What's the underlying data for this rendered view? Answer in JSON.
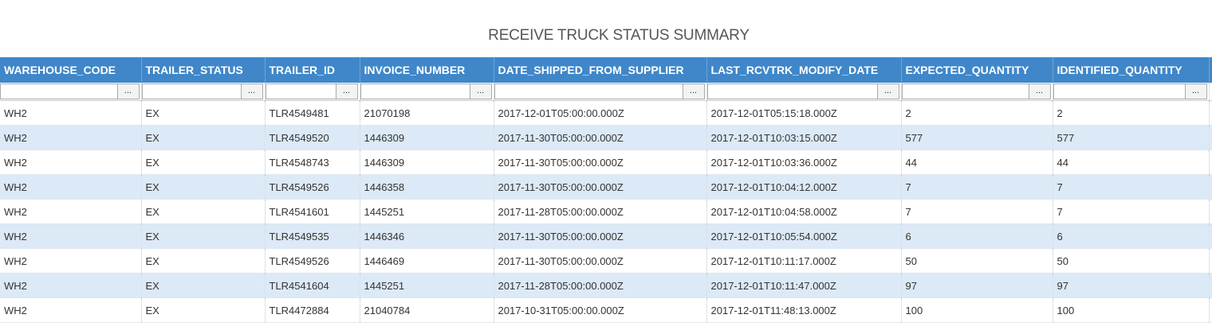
{
  "header": {
    "title": "RECEIVE TRUCK STATUS SUMMARY"
  },
  "table": {
    "filter_button": "...",
    "columns": [
      "WAREHOUSE_CODE",
      "TRAILER_STATUS",
      "TRAILER_ID",
      "INVOICE_NUMBER",
      "DATE_SHIPPED_FROM_SUPPLIER",
      "LAST_RCVTRK_MODIFY_DATE",
      "EXPECTED_QUANTITY",
      "IDENTIFIED_QUANTITY"
    ],
    "rows": [
      [
        "WH2",
        "EX",
        "TLR4549481",
        "21070198",
        "2017-12-01T05:00:00.000Z",
        "2017-12-01T05:15:18.000Z",
        "2",
        "2"
      ],
      [
        "WH2",
        "EX",
        "TLR4549520",
        "1446309",
        "2017-11-30T05:00:00.000Z",
        "2017-12-01T10:03:15.000Z",
        "577",
        "577"
      ],
      [
        "WH2",
        "EX",
        "TLR4548743",
        "1446309",
        "2017-11-30T05:00:00.000Z",
        "2017-12-01T10:03:36.000Z",
        "44",
        "44"
      ],
      [
        "WH2",
        "EX",
        "TLR4549526",
        "1446358",
        "2017-11-30T05:00:00.000Z",
        "2017-12-01T10:04:12.000Z",
        "7",
        "7"
      ],
      [
        "WH2",
        "EX",
        "TLR4541601",
        "1445251",
        "2017-11-28T05:00:00.000Z",
        "2017-12-01T10:04:58.000Z",
        "7",
        "7"
      ],
      [
        "WH2",
        "EX",
        "TLR4549535",
        "1446346",
        "2017-11-30T05:00:00.000Z",
        "2017-12-01T10:05:54.000Z",
        "6",
        "6"
      ],
      [
        "WH2",
        "EX",
        "TLR4549526",
        "1446469",
        "2017-11-30T05:00:00.000Z",
        "2017-12-01T10:11:17.000Z",
        "50",
        "50"
      ],
      [
        "WH2",
        "EX",
        "TLR4541604",
        "1445251",
        "2017-11-28T05:00:00.000Z",
        "2017-12-01T10:11:47.000Z",
        "97",
        "97"
      ],
      [
        "WH2",
        "EX",
        "TLR4472884",
        "21040784",
        "2017-10-31T05:00:00.000Z",
        "2017-12-01T11:48:13.000Z",
        "100",
        "100"
      ]
    ]
  }
}
